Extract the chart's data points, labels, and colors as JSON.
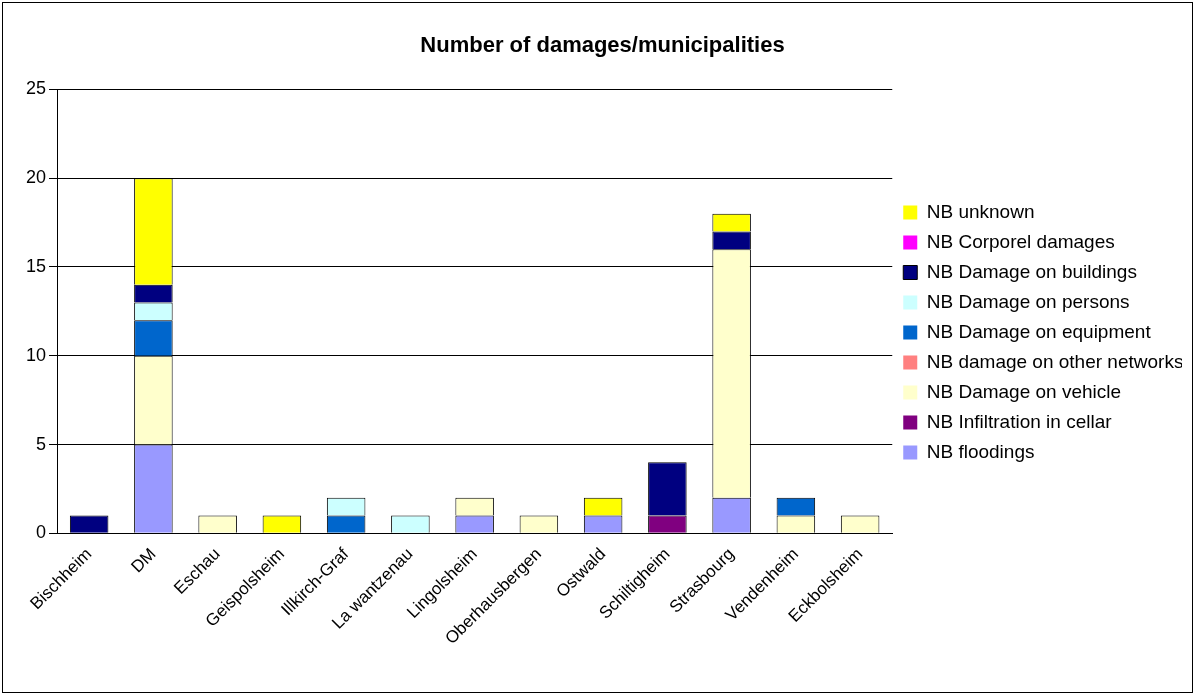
{
  "chart_data": {
    "type": "bar",
    "title": "Number of damages/municipalities",
    "stacked": true,
    "grid": "y",
    "legend": "right",
    "categories": [
      "Bischheim",
      "DM",
      "Eschau",
      "Geispolsheim",
      "Illkirch-Graf",
      "La wantzenau",
      "Lingolsheim",
      "Oberhausbergen",
      "Ostwald",
      "Schiltigheim",
      "Strasbourg",
      "Vendenheim",
      "Eckbolsheim"
    ],
    "ylim": [
      0,
      25
    ],
    "yticks": [
      0,
      5,
      10,
      15,
      20,
      25
    ],
    "series": [
      {
        "name": "NB floodings",
        "color": "#9999ff",
        "values": [
          0,
          5,
          0,
          0,
          0,
          0,
          1,
          0,
          1,
          0,
          2,
          0,
          0
        ]
      },
      {
        "name": "NB Infiltration in cellar",
        "color": "#800080",
        "values": [
          0,
          0,
          0,
          0,
          0,
          0,
          0,
          0,
          0,
          1,
          0,
          0,
          0
        ]
      },
      {
        "name": "NB Damage on vehicle",
        "color": "#ffffcc",
        "values": [
          0,
          5,
          1,
          0,
          0,
          0,
          1,
          1,
          0,
          0,
          14,
          1,
          1
        ]
      },
      {
        "name": "NB damage on other networks",
        "color": "#ff8080",
        "values": [
          0,
          0,
          0,
          0,
          0,
          0,
          0,
          0,
          0,
          0,
          0,
          0,
          0
        ]
      },
      {
        "name": "NB Damage on equipment",
        "color": "#0066cc",
        "values": [
          0,
          2,
          0,
          0,
          1,
          0,
          0,
          0,
          0,
          0,
          0,
          1,
          0
        ]
      },
      {
        "name": "NB Damage on persons",
        "color": "#ccffff",
        "values": [
          0,
          1,
          0,
          0,
          1,
          1,
          0,
          0,
          0,
          0,
          0,
          0,
          0
        ]
      },
      {
        "name": "NB Damage on buildings",
        "color": "#000080",
        "values": [
          1,
          1,
          0,
          0,
          0,
          0,
          0,
          0,
          0,
          3,
          1,
          0,
          0
        ]
      },
      {
        "name": "NB Corporel damages",
        "color": "#ff00ff",
        "values": [
          0,
          0,
          0,
          0,
          0,
          0,
          0,
          0,
          0,
          0,
          0,
          0,
          0
        ]
      },
      {
        "name": "NB unknown",
        "color": "#ffff00",
        "values": [
          0,
          6,
          0,
          1,
          0,
          0,
          0,
          0,
          1,
          0,
          1,
          0,
          0
        ]
      }
    ]
  }
}
